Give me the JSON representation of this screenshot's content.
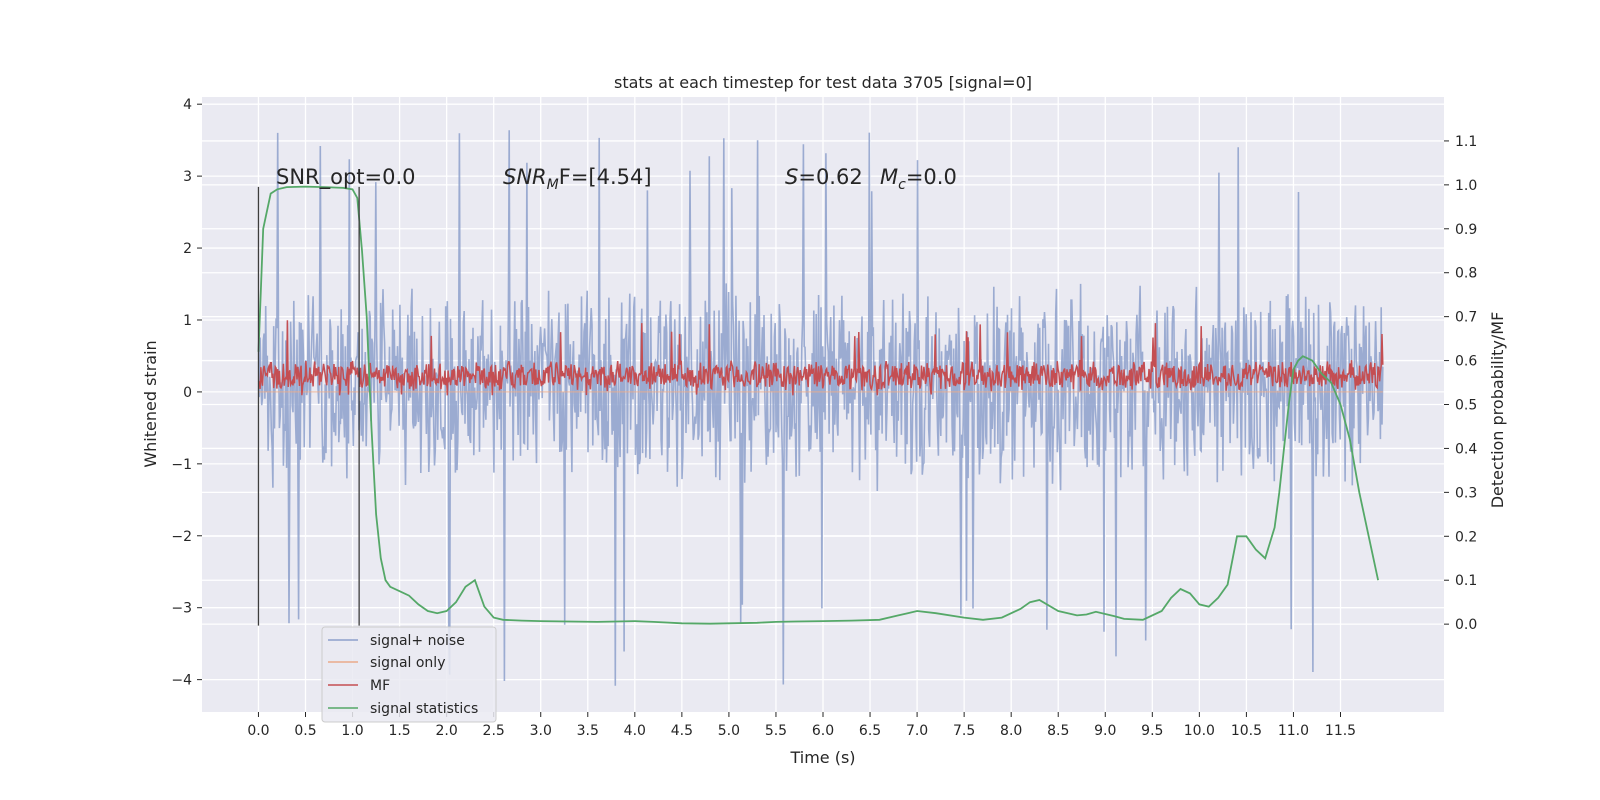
{
  "chart_data": {
    "type": "line",
    "title": "stats at each timestep for test data 3705 [signal=0]",
    "xlabel": "Time (s)",
    "ylabel": "Whitened strain",
    "y2label": "Detection probability/MF",
    "xlim": [
      -0.6,
      12.6
    ],
    "ylim": [
      -4.45,
      4.1
    ],
    "y2lim": [
      -0.2,
      1.2
    ],
    "x_ticks": [
      "0.0",
      "0.5",
      "1.0",
      "1.5",
      "2.0",
      "2.5",
      "3.0",
      "3.5",
      "4.0",
      "4.5",
      "5.0",
      "5.5",
      "6.0",
      "6.5",
      "7.0",
      "7.5",
      "8.0",
      "8.5",
      "9.0",
      "9.5",
      "10.0",
      "10.5",
      "11.0",
      "11.5"
    ],
    "y_ticks": [
      "4",
      "3",
      "2",
      "1",
      "0",
      "−1",
      "−2",
      "−3",
      "−4"
    ],
    "y2_ticks": [
      "1.1",
      "1.0",
      "0.9",
      "0.8",
      "0.7",
      "0.6",
      "0.5",
      "0.4",
      "0.3",
      "0.2",
      "0.1",
      "0.0"
    ],
    "grid": true,
    "legend_position": "lower-left",
    "annotations": {
      "snr_opt": "SNR_opt=0.0",
      "snr_mf_sym": "SNR",
      "snr_mf_sub": "M",
      "snr_mf_rest": "F=[4.54]",
      "s_sym": "S",
      "s_rest": "=0.62",
      "mc_sym": "M",
      "mc_sub": "c",
      "mc_rest": "=0.0"
    },
    "vlines": [
      0.0,
      1.07
    ],
    "series": [
      {
        "name": "signal+ noise",
        "color": "#8da0cb",
        "axis": "left",
        "kind": "noise",
        "envelope": {
          "x_start": 0.0,
          "x_end": 11.95,
          "typical_min": -1.4,
          "typical_max": 1.6,
          "peak_min": -4.1,
          "peak_max": 3.7
        }
      },
      {
        "name": "signal only",
        "color": "#e9a98a",
        "axis": "left",
        "kind": "flat",
        "value": 0.0
      },
      {
        "name": "MF",
        "color": "#c44e52",
        "axis": "left",
        "kind": "noise",
        "envelope": {
          "x_start": 0.0,
          "x_end": 11.95,
          "typical_min": 0.0,
          "typical_max": 0.45,
          "peak_min": -0.05,
          "peak_max": 1.0
        }
      },
      {
        "name": "signal statistics",
        "color": "#55a868",
        "axis": "right",
        "kind": "line",
        "x": [
          0.0,
          0.05,
          0.08,
          0.13,
          0.2,
          0.3,
          0.5,
          0.7,
          0.9,
          1.0,
          1.05,
          1.1,
          1.15,
          1.2,
          1.25,
          1.3,
          1.35,
          1.4,
          1.5,
          1.6,
          1.7,
          1.8,
          1.9,
          2.0,
          2.1,
          2.2,
          2.3,
          2.4,
          2.5,
          2.6,
          2.8,
          3.0,
          3.3,
          3.6,
          3.8,
          4.0,
          4.2,
          4.5,
          4.8,
          5.0,
          5.3,
          5.5,
          5.7,
          6.0,
          6.3,
          6.6,
          6.8,
          6.9,
          7.0,
          7.2,
          7.5,
          7.7,
          7.9,
          8.1,
          8.2,
          8.3,
          8.5,
          8.7,
          8.8,
          8.9,
          9.1,
          9.2,
          9.4,
          9.6,
          9.7,
          9.8,
          9.9,
          10.0,
          10.1,
          10.2,
          10.3,
          10.4,
          10.5,
          10.6,
          10.7,
          10.8,
          10.85,
          10.9,
          10.95,
          11.0,
          11.05,
          11.1,
          11.2,
          11.3,
          11.4,
          11.5,
          11.6,
          11.7,
          11.8,
          11.9
        ],
        "y": [
          0.62,
          0.9,
          0.93,
          0.98,
          0.99,
          0.995,
          0.996,
          0.995,
          0.993,
          0.99,
          0.97,
          0.85,
          0.7,
          0.45,
          0.25,
          0.15,
          0.1,
          0.085,
          0.075,
          0.065,
          0.045,
          0.03,
          0.025,
          0.03,
          0.05,
          0.085,
          0.1,
          0.04,
          0.015,
          0.01,
          0.008,
          0.007,
          0.006,
          0.005,
          0.006,
          0.007,
          0.005,
          0.002,
          0.001,
          0.002,
          0.003,
          0.005,
          0.006,
          0.007,
          0.008,
          0.01,
          0.02,
          0.025,
          0.03,
          0.025,
          0.015,
          0.01,
          0.015,
          0.035,
          0.05,
          0.055,
          0.03,
          0.02,
          0.022,
          0.028,
          0.018,
          0.012,
          0.01,
          0.03,
          0.06,
          0.08,
          0.07,
          0.045,
          0.04,
          0.06,
          0.09,
          0.2,
          0.2,
          0.17,
          0.15,
          0.22,
          0.3,
          0.4,
          0.5,
          0.58,
          0.6,
          0.61,
          0.6,
          0.57,
          0.55,
          0.5,
          0.42,
          0.3,
          0.2,
          0.1
        ]
      }
    ]
  }
}
